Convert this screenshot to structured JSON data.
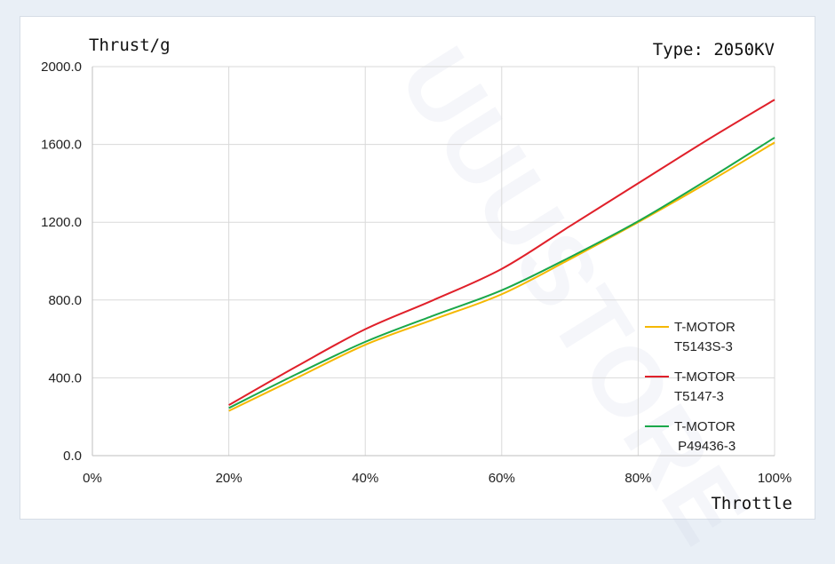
{
  "chart_data": {
    "type": "line",
    "title": "Type: 2050KV",
    "ylabel": "Thrust/g",
    "xlabel": "Throttle",
    "x": [
      20,
      30,
      40,
      50,
      60,
      70,
      80,
      90,
      100
    ],
    "xlim": [
      0,
      100
    ],
    "ylim": [
      0,
      2000
    ],
    "x_ticks": [
      "0%",
      "20%",
      "40%",
      "60%",
      "80%",
      "100%"
    ],
    "y_ticks": [
      "0.0",
      "400.0",
      "800.0",
      "1200.0",
      "1600.0",
      "2000.0"
    ],
    "grid": true,
    "legend_position": "right",
    "series": [
      {
        "name": "T-MOTOR\nT5143S-3",
        "color": "#f5b800",
        "values": [
          230,
          400,
          570,
          700,
          830,
          1010,
          1200,
          1400,
          1610
        ]
      },
      {
        "name": "T-MOTOR\nT5147-3",
        "color": "#e0202a",
        "values": [
          260,
          460,
          650,
          800,
          960,
          1180,
          1400,
          1620,
          1830
        ]
      },
      {
        "name": "T-MOTOR\n P49436-3",
        "color": "#1aa84a",
        "values": [
          245,
          420,
          585,
          720,
          850,
          1020,
          1205,
          1415,
          1635
        ]
      }
    ]
  },
  "watermark": "UUUSTORE"
}
